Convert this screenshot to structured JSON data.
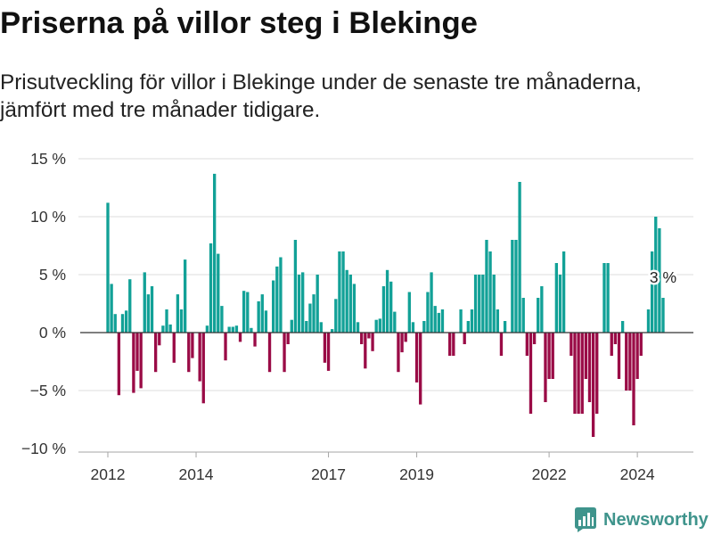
{
  "colors": {
    "positive": "#12a197",
    "negative": "#9a0b46",
    "grid": "#dedede",
    "zero_line": "#333333",
    "axis": "#a6a6a6",
    "brand": "#3f948c"
  },
  "brand": {
    "name": "Newsworthy",
    "icon": "bar-chart-logo-icon"
  },
  "chart_data": {
    "type": "bar",
    "title": "Priserna på villor steg i Blekinge",
    "subtitle": [
      "Prisutveckling för villor i Blekinge under de senaste tre månaderna,",
      "jämfört med tre månader tidigare."
    ],
    "xlabel": "",
    "ylabel": "",
    "ylim": [
      -10,
      15
    ],
    "grid": true,
    "y_ticks": [
      15,
      10,
      5,
      0,
      -5,
      -10
    ],
    "y_tick_labels": [
      "15 %",
      "10 %",
      "5 %",
      "0 %",
      "−5 %",
      "−10 %"
    ],
    "x_ticks": [
      "2012-01",
      "2014-01",
      "2017-01",
      "2019-01",
      "2022-01",
      "2024-01"
    ],
    "x_tick_labels": [
      "2012",
      "2014",
      "2017",
      "2019",
      "2022",
      "2024"
    ],
    "annotation": {
      "x": "2024-08",
      "text": "3 %"
    },
    "x": [
      "2012-01",
      "2012-02",
      "2012-03",
      "2012-04",
      "2012-05",
      "2012-06",
      "2012-07",
      "2012-08",
      "2012-09",
      "2012-10",
      "2012-11",
      "2012-12",
      "2013-01",
      "2013-02",
      "2013-03",
      "2013-04",
      "2013-05",
      "2013-06",
      "2013-07",
      "2013-08",
      "2013-09",
      "2013-10",
      "2013-11",
      "2013-12",
      "2014-01",
      "2014-02",
      "2014-03",
      "2014-04",
      "2014-05",
      "2014-06",
      "2014-07",
      "2014-08",
      "2014-09",
      "2014-10",
      "2014-11",
      "2014-12",
      "2015-01",
      "2015-02",
      "2015-03",
      "2015-04",
      "2015-05",
      "2015-06",
      "2015-07",
      "2015-08",
      "2015-09",
      "2015-10",
      "2015-11",
      "2015-12",
      "2016-01",
      "2016-02",
      "2016-03",
      "2016-04",
      "2016-05",
      "2016-06",
      "2016-07",
      "2016-08",
      "2016-09",
      "2016-10",
      "2016-11",
      "2016-12",
      "2017-01",
      "2017-02",
      "2017-03",
      "2017-04",
      "2017-05",
      "2017-06",
      "2017-07",
      "2017-08",
      "2017-09",
      "2017-10",
      "2017-11",
      "2017-12",
      "2018-01",
      "2018-02",
      "2018-03",
      "2018-04",
      "2018-05",
      "2018-06",
      "2018-07",
      "2018-08",
      "2018-09",
      "2018-10",
      "2018-11",
      "2018-12",
      "2019-01",
      "2019-02",
      "2019-03",
      "2019-04",
      "2019-05",
      "2019-06",
      "2019-07",
      "2019-08",
      "2019-09",
      "2019-10",
      "2019-11",
      "2019-12",
      "2020-01",
      "2020-02",
      "2020-03",
      "2020-04",
      "2020-05",
      "2020-06",
      "2020-07",
      "2020-08",
      "2020-09",
      "2020-10",
      "2020-11",
      "2020-12",
      "2021-01",
      "2021-02",
      "2021-03",
      "2021-04",
      "2021-05",
      "2021-06",
      "2021-07",
      "2021-08",
      "2021-09",
      "2021-10",
      "2021-11",
      "2021-12",
      "2022-01",
      "2022-02",
      "2022-03",
      "2022-04",
      "2022-05",
      "2022-06",
      "2022-07",
      "2022-08",
      "2022-09",
      "2022-10",
      "2022-11",
      "2022-12",
      "2023-01",
      "2023-02",
      "2023-03",
      "2023-04",
      "2023-05",
      "2023-06",
      "2023-07",
      "2023-08",
      "2023-09",
      "2023-10",
      "2023-11",
      "2023-12",
      "2024-01",
      "2024-02",
      "2024-03",
      "2024-04",
      "2024-05",
      "2024-06",
      "2024-07",
      "2024-08"
    ],
    "values": [
      11.2,
      4.2,
      1.6,
      -5.4,
      1.6,
      1.9,
      4.6,
      -5.2,
      -3.3,
      -4.8,
      5.2,
      3.3,
      4.0,
      -3.4,
      -1.1,
      0.6,
      2.0,
      0.7,
      -2.6,
      3.3,
      2.0,
      6.3,
      -3.4,
      -2.2,
      0,
      -4.2,
      -6.1,
      0.6,
      7.7,
      13.7,
      6.8,
      2.3,
      -2.4,
      0.5,
      0.5,
      0.6,
      -0.8,
      3.6,
      3.5,
      0.4,
      -1.2,
      2.7,
      3.3,
      1.9,
      -3.4,
      4.5,
      5.7,
      6.5,
      -3.4,
      -1.0,
      1.1,
      8.0,
      5.0,
      5.2,
      1.0,
      2.5,
      3.3,
      5.0,
      0.9,
      -2.6,
      -3.3,
      0.3,
      2.9,
      7.0,
      7.0,
      5.4,
      5.0,
      4.2,
      0.9,
      -1.0,
      -3.1,
      -0.5,
      -1.6,
      1.1,
      1.2,
      4.0,
      5.4,
      4.4,
      1.8,
      -3.4,
      -1.7,
      -0.8,
      3.5,
      0.9,
      -4.3,
      -6.2,
      1.0,
      3.5,
      5.2,
      2.3,
      1.7,
      2.0,
      0,
      -2.0,
      -2.0,
      0,
      2.0,
      -1.0,
      1.0,
      2.0,
      5.0,
      5.0,
      5.0,
      8.0,
      7.0,
      5.0,
      2.0,
      -2.0,
      1.0,
      0,
      8.0,
      8.0,
      13.0,
      3.0,
      -2.0,
      -7.0,
      -1.0,
      3.0,
      4.0,
      -6.0,
      -4.0,
      -4.0,
      6.0,
      5.0,
      7.0,
      0,
      -2.0,
      -7.0,
      -7.0,
      -7.0,
      -4.0,
      -6.0,
      -9.0,
      -7.0,
      0,
      6.0,
      6.0,
      -2.0,
      -1.0,
      -4.0,
      1.0,
      -5.0,
      -5.0,
      -8.0,
      -4.0,
      -2.0,
      0,
      2.0,
      7.0,
      10.0,
      9.0,
      3.0
    ]
  }
}
